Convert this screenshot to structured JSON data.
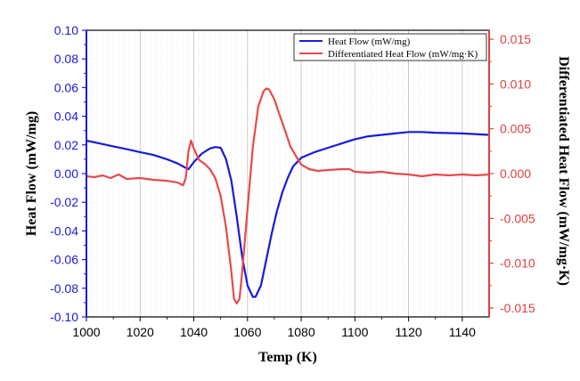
{
  "chart_data": {
    "type": "line",
    "xlabel": "Temp (K)",
    "ylabel": "Heat Flow (mW/mg)",
    "y2label": "Differentiated Heat Flow (mW/mg·K)",
    "xlim": [
      1000,
      1150
    ],
    "ylim": [
      -0.1,
      0.1
    ],
    "y2lim": [
      -0.016,
      0.016
    ],
    "x_ticks": [
      1000,
      1020,
      1040,
      1060,
      1080,
      1100,
      1120,
      1140
    ],
    "x_tick_labels": [
      "1000",
      "1020",
      "1040",
      "1060",
      "1080",
      "1100",
      "1120",
      "1140"
    ],
    "y_tick_labels": [
      "0.10",
      "0.08",
      "0.06",
      "0.04",
      "0.02",
      "0.00",
      "-0.02",
      "-0.04",
      "-0.06",
      "-0.08",
      "-0.10"
    ],
    "y_ticks": [
      0.1,
      0.08,
      0.06,
      0.04,
      0.02,
      0.0,
      -0.02,
      -0.04,
      -0.06,
      -0.08,
      -0.1
    ],
    "y2_tick_labels": [
      "0.015",
      "0.010",
      "0.005",
      "0.000",
      "-0.005",
      "-0.010",
      "-0.015"
    ],
    "y2_ticks": [
      0.015,
      0.01,
      0.005,
      0.0,
      -0.005,
      -0.01,
      -0.015
    ],
    "grid": true,
    "legend_position": "top-right",
    "series": [
      {
        "name": "Heat Flow (mW/mg)",
        "axis": "left",
        "color": "#1a1adb",
        "points": [
          [
            1000,
            0.023
          ],
          [
            1005,
            0.021
          ],
          [
            1010,
            0.019
          ],
          [
            1015,
            0.017
          ],
          [
            1020,
            0.015
          ],
          [
            1025,
            0.013
          ],
          [
            1030,
            0.01
          ],
          [
            1034,
            0.007
          ],
          [
            1037,
            0.004
          ],
          [
            1038,
            0.003
          ],
          [
            1040,
            0.008
          ],
          [
            1043,
            0.014
          ],
          [
            1046,
            0.0175
          ],
          [
            1048,
            0.0185
          ],
          [
            1050,
            0.018
          ],
          [
            1052,
            0.01
          ],
          [
            1054,
            -0.005
          ],
          [
            1056,
            -0.03
          ],
          [
            1058,
            -0.058
          ],
          [
            1060,
            -0.078
          ],
          [
            1062,
            -0.086
          ],
          [
            1063,
            -0.086
          ],
          [
            1065,
            -0.078
          ],
          [
            1067,
            -0.06
          ],
          [
            1069,
            -0.042
          ],
          [
            1071,
            -0.026
          ],
          [
            1073,
            -0.013
          ],
          [
            1075,
            -0.003
          ],
          [
            1077,
            0.005
          ],
          [
            1080,
            0.011
          ],
          [
            1085,
            0.015
          ],
          [
            1090,
            0.018
          ],
          [
            1095,
            0.021
          ],
          [
            1100,
            0.024
          ],
          [
            1105,
            0.026
          ],
          [
            1110,
            0.027
          ],
          [
            1115,
            0.028
          ],
          [
            1120,
            0.029
          ],
          [
            1125,
            0.029
          ],
          [
            1130,
            0.0285
          ],
          [
            1140,
            0.028
          ],
          [
            1150,
            0.027
          ]
        ]
      },
      {
        "name": "Differentiated Heat Flow (mW/mg·K)",
        "axis": "right",
        "color": "#e84a4a",
        "points": [
          [
            1000,
            -0.0003
          ],
          [
            1003,
            -0.0004
          ],
          [
            1006,
            -0.0002
          ],
          [
            1009,
            -0.0005
          ],
          [
            1012,
            -0.0001
          ],
          [
            1015,
            -0.0006
          ],
          [
            1020,
            -0.0005
          ],
          [
            1025,
            -0.0007
          ],
          [
            1030,
            -0.0008
          ],
          [
            1034,
            -0.001
          ],
          [
            1036,
            -0.0013
          ],
          [
            1037,
            -0.0005
          ],
          [
            1038,
            0.0025
          ],
          [
            1039,
            0.0037
          ],
          [
            1040,
            0.0028
          ],
          [
            1042,
            0.0015
          ],
          [
            1044,
            0.0011
          ],
          [
            1046,
            0.0005
          ],
          [
            1048,
            -0.0005
          ],
          [
            1050,
            -0.0025
          ],
          [
            1052,
            -0.006
          ],
          [
            1054,
            -0.011
          ],
          [
            1055,
            -0.014
          ],
          [
            1056,
            -0.0145
          ],
          [
            1057,
            -0.014
          ],
          [
            1058,
            -0.011
          ],
          [
            1060,
            -0.004
          ],
          [
            1062,
            0.003
          ],
          [
            1064,
            0.0075
          ],
          [
            1066,
            0.0092
          ],
          [
            1067,
            0.0095
          ],
          [
            1068,
            0.0094
          ],
          [
            1070,
            0.0083
          ],
          [
            1072,
            0.0065
          ],
          [
            1074,
            0.0048
          ],
          [
            1076,
            0.003
          ],
          [
            1078,
            0.002
          ],
          [
            1080,
            0.001
          ],
          [
            1083,
            0.0005
          ],
          [
            1086,
            0.0003
          ],
          [
            1090,
            0.0004
          ],
          [
            1095,
            0.0005
          ],
          [
            1098,
            0.0005
          ],
          [
            1100,
            0.0002
          ],
          [
            1105,
            0.0001
          ],
          [
            1110,
            0.0002
          ],
          [
            1115,
            0.0
          ],
          [
            1120,
            -0.0001
          ],
          [
            1125,
            -0.0003
          ],
          [
            1130,
            -0.0001
          ],
          [
            1135,
            -0.0002
          ],
          [
            1140,
            -0.0001
          ],
          [
            1145,
            -0.0002
          ],
          [
            1150,
            -0.0001
          ]
        ]
      }
    ]
  }
}
